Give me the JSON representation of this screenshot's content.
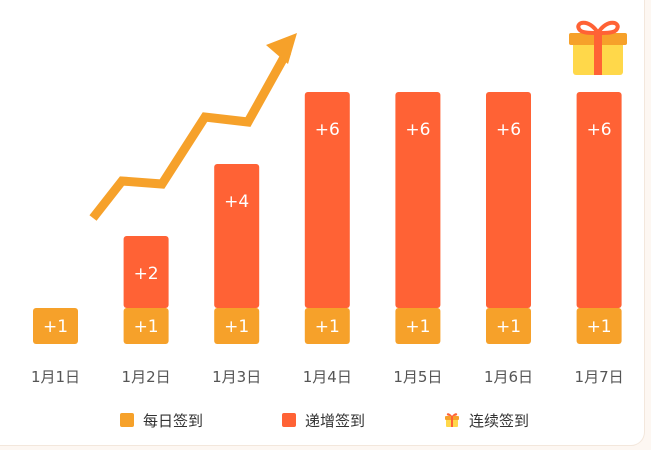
{
  "colors": {
    "daily": "#f6a12a",
    "incremental": "#ff6235",
    "arrow": "#f6a12a",
    "gift_box": "#ffd84a",
    "gift_lid": "#f6a12a",
    "gift_ribbon": "#ff6235"
  },
  "icons": {
    "top_right": "gift-icon",
    "legend_consecutive": "gift-icon"
  },
  "chart_data": {
    "type": "bar",
    "stacked": true,
    "categories": [
      "1月1日",
      "1月2日",
      "1月3日",
      "1月4日",
      "1月5日",
      "1月6日",
      "1月7日"
    ],
    "series": [
      {
        "name": "每日签到",
        "values": [
          1,
          1,
          1,
          1,
          1,
          1,
          1
        ],
        "labels": [
          "+1",
          "+1",
          "+1",
          "+1",
          "+1",
          "+1",
          "+1"
        ]
      },
      {
        "name": "递增签到",
        "values": [
          0,
          2,
          4,
          6,
          6,
          6,
          6
        ],
        "labels": [
          "",
          "+2",
          "+4",
          "+6",
          "+6",
          "+6",
          "+6"
        ]
      }
    ],
    "ylim": [
      0,
      7
    ],
    "grid": false,
    "legend_position": "bottom",
    "title": "",
    "xlabel": "",
    "ylabel": ""
  },
  "legend": [
    {
      "label": "每日签到"
    },
    {
      "label": "递增签到"
    },
    {
      "label": "连续签到"
    }
  ]
}
